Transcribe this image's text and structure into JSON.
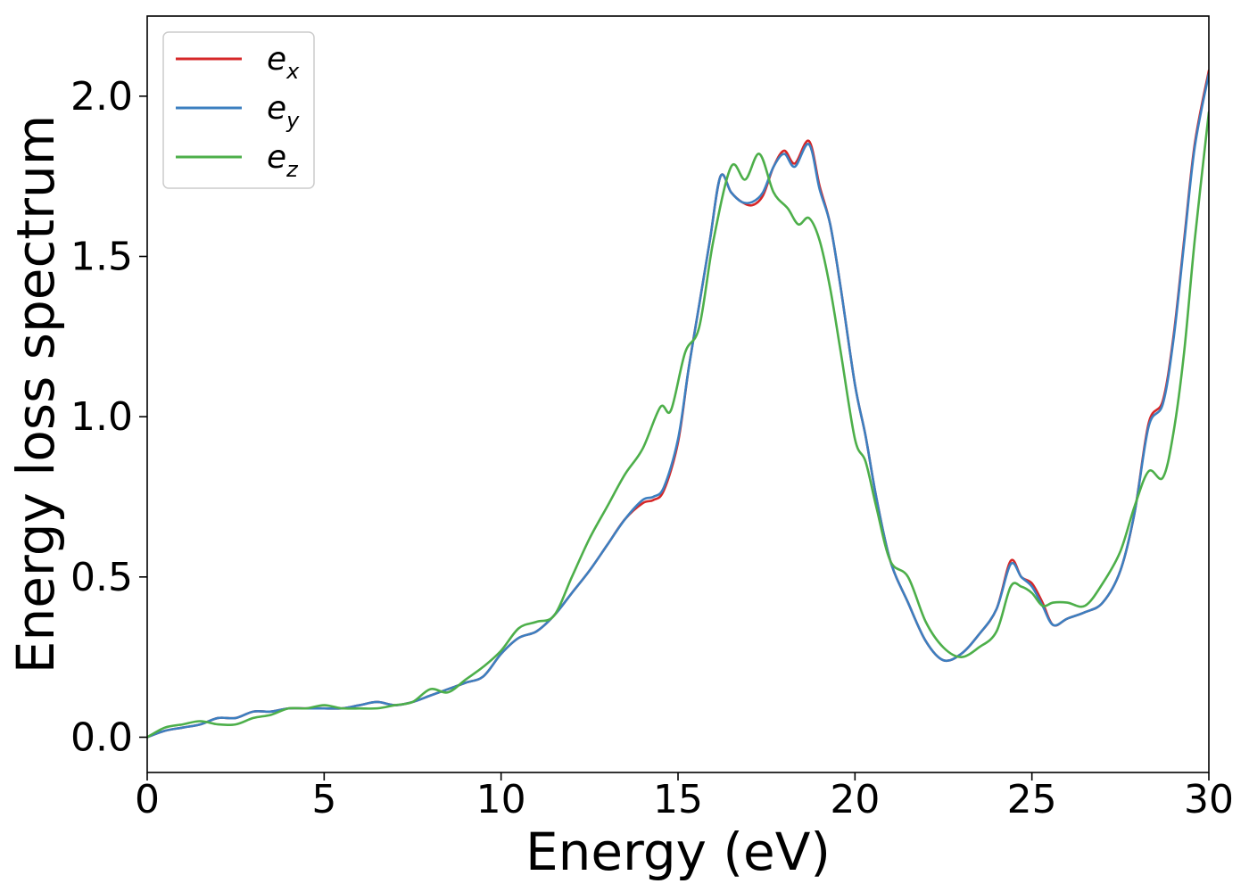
{
  "chart_data": {
    "type": "line",
    "xlabel": "Energy (eV)",
    "ylabel": "Energy loss spectrum",
    "xlim": [
      0,
      30
    ],
    "ylim": [
      -0.11,
      2.25
    ],
    "xticks": [
      0,
      5,
      10,
      15,
      20,
      25,
      30
    ],
    "xtick_labels": [
      "0",
      "5",
      "10",
      "15",
      "20",
      "25",
      "30"
    ],
    "yticks": [
      0.0,
      0.5,
      1.0,
      1.5,
      2.0
    ],
    "ytick_labels": [
      "0.0",
      "0.5",
      "1.0",
      "1.5",
      "2.0"
    ],
    "grid": false,
    "legend_position": "top-left",
    "series": [
      {
        "name": "e_x",
        "label_base": "e",
        "label_sub": "x",
        "color": "#d62728",
        "x": [
          0,
          0.5,
          1,
          1.5,
          2,
          2.5,
          3,
          3.5,
          4,
          4.5,
          5,
          5.5,
          6,
          6.5,
          7,
          7.5,
          8,
          8.5,
          9,
          9.5,
          10,
          10.5,
          11,
          11.5,
          12,
          12.5,
          13,
          13.5,
          14,
          14.3,
          14.6,
          15,
          15.3,
          15.6,
          15.9,
          16.2,
          16.5,
          16.8,
          17.1,
          17.4,
          17.7,
          18,
          18.3,
          18.7,
          19,
          19.3,
          19.6,
          20,
          20.3,
          20.6,
          21,
          21.5,
          22,
          22.5,
          23,
          23.5,
          24,
          24.4,
          24.7,
          25,
          25.3,
          25.6,
          26,
          26.5,
          27,
          27.5,
          27.9,
          28.3,
          28.7,
          29,
          29.3,
          29.6,
          30
        ],
        "y": [
          0.0,
          0.02,
          0.03,
          0.04,
          0.06,
          0.06,
          0.08,
          0.08,
          0.09,
          0.09,
          0.09,
          0.09,
          0.1,
          0.11,
          0.1,
          0.11,
          0.13,
          0.15,
          0.17,
          0.19,
          0.26,
          0.31,
          0.33,
          0.38,
          0.45,
          0.52,
          0.6,
          0.68,
          0.73,
          0.74,
          0.77,
          0.92,
          1.15,
          1.35,
          1.55,
          1.75,
          1.7,
          1.67,
          1.66,
          1.69,
          1.78,
          1.83,
          1.79,
          1.86,
          1.72,
          1.6,
          1.4,
          1.1,
          0.94,
          0.75,
          0.55,
          0.42,
          0.3,
          0.24,
          0.26,
          0.32,
          0.4,
          0.55,
          0.5,
          0.48,
          0.42,
          0.35,
          0.37,
          0.39,
          0.42,
          0.52,
          0.7,
          0.98,
          1.05,
          1.25,
          1.55,
          1.85,
          2.08
        ]
      },
      {
        "name": "e_y",
        "label_base": "e",
        "label_sub": "y",
        "color": "#3c7fc0",
        "x": [
          0,
          0.5,
          1,
          1.5,
          2,
          2.5,
          3,
          3.5,
          4,
          4.5,
          5,
          5.5,
          6,
          6.5,
          7,
          7.5,
          8,
          8.5,
          9,
          9.5,
          10,
          10.5,
          11,
          11.5,
          12,
          12.5,
          13,
          13.5,
          14,
          14.3,
          14.6,
          15,
          15.3,
          15.6,
          15.9,
          16.2,
          16.5,
          16.8,
          17.1,
          17.4,
          17.7,
          18,
          18.3,
          18.7,
          19,
          19.3,
          19.6,
          20,
          20.3,
          20.6,
          21,
          21.5,
          22,
          22.5,
          23,
          23.5,
          24,
          24.4,
          24.7,
          25,
          25.3,
          25.6,
          26,
          26.5,
          27,
          27.5,
          27.9,
          28.3,
          28.7,
          29,
          29.3,
          29.6,
          30
        ],
        "y": [
          0.0,
          0.02,
          0.03,
          0.04,
          0.06,
          0.06,
          0.08,
          0.08,
          0.09,
          0.09,
          0.09,
          0.09,
          0.1,
          0.11,
          0.1,
          0.11,
          0.13,
          0.15,
          0.17,
          0.19,
          0.26,
          0.31,
          0.33,
          0.38,
          0.45,
          0.52,
          0.6,
          0.68,
          0.74,
          0.75,
          0.78,
          0.93,
          1.15,
          1.35,
          1.55,
          1.75,
          1.7,
          1.67,
          1.67,
          1.7,
          1.78,
          1.82,
          1.78,
          1.85,
          1.71,
          1.6,
          1.4,
          1.1,
          0.94,
          0.75,
          0.55,
          0.42,
          0.3,
          0.24,
          0.26,
          0.32,
          0.4,
          0.54,
          0.5,
          0.47,
          0.41,
          0.35,
          0.37,
          0.39,
          0.42,
          0.52,
          0.7,
          0.97,
          1.04,
          1.24,
          1.54,
          1.84,
          2.07
        ]
      },
      {
        "name": "e_z",
        "label_base": "e",
        "label_sub": "z",
        "color": "#4daf4a",
        "x": [
          0,
          0.5,
          1,
          1.5,
          2,
          2.5,
          3,
          3.5,
          4,
          4.5,
          5,
          5.5,
          6,
          6.5,
          7,
          7.5,
          8,
          8.5,
          9,
          9.5,
          10,
          10.5,
          11,
          11.5,
          12,
          12.5,
          13,
          13.5,
          14,
          14.5,
          14.8,
          15.2,
          15.6,
          16,
          16.5,
          16.9,
          17.3,
          17.7,
          18.1,
          18.4,
          18.7,
          19,
          19.3,
          19.6,
          20,
          20.3,
          20.6,
          21,
          21.5,
          22,
          22.5,
          23,
          23.5,
          24,
          24.4,
          24.7,
          25,
          25.3,
          25.6,
          26,
          26.5,
          27,
          27.5,
          27.9,
          28.3,
          28.7,
          29,
          29.3,
          29.6,
          30
        ],
        "y": [
          0.0,
          0.03,
          0.04,
          0.05,
          0.04,
          0.04,
          0.06,
          0.07,
          0.09,
          0.09,
          0.1,
          0.09,
          0.09,
          0.09,
          0.1,
          0.11,
          0.15,
          0.14,
          0.18,
          0.22,
          0.27,
          0.34,
          0.36,
          0.38,
          0.5,
          0.62,
          0.72,
          0.82,
          0.9,
          1.03,
          1.02,
          1.2,
          1.28,
          1.55,
          1.78,
          1.74,
          1.82,
          1.7,
          1.65,
          1.6,
          1.62,
          1.55,
          1.4,
          1.2,
          0.93,
          0.86,
          0.72,
          0.55,
          0.5,
          0.36,
          0.28,
          0.25,
          0.28,
          0.33,
          0.47,
          0.47,
          0.45,
          0.41,
          0.42,
          0.42,
          0.41,
          0.48,
          0.58,
          0.72,
          0.83,
          0.81,
          0.95,
          1.2,
          1.55,
          1.95
        ]
      }
    ]
  }
}
